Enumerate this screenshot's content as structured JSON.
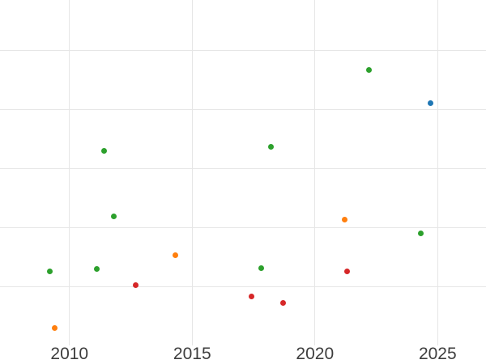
{
  "chart_data": {
    "type": "scatter",
    "title": "",
    "xlabel": "",
    "ylabel": "",
    "xlim": [
      2007.17,
      2026.97
    ],
    "ylim": [
      0,
      58.5
    ],
    "x_ticks": [
      {
        "value": 2010,
        "label": "2010"
      },
      {
        "value": 2015,
        "label": "2015"
      },
      {
        "value": 2020,
        "label": "2020"
      },
      {
        "value": 2025,
        "label": "2025"
      }
    ],
    "y_gridlines": [
      10,
      20,
      30,
      40,
      50
    ],
    "grid": true,
    "legend_position": "none",
    "marker_diameter_px": 7,
    "colors": {
      "gridline": "#e6e6e6",
      "tick_label": "#3d3d3d",
      "background": "#ffffff"
    },
    "series": [
      {
        "name": "green",
        "color": "#2ca02c",
        "points": [
          [
            2009.2,
            12.5
          ],
          [
            2011.1,
            12.9
          ],
          [
            2011.4,
            32.9
          ],
          [
            2011.8,
            21.8
          ],
          [
            2017.8,
            13.1
          ],
          [
            2018.2,
            33.7
          ],
          [
            2022.2,
            46.7
          ],
          [
            2024.3,
            19.0
          ]
        ]
      },
      {
        "name": "orange",
        "color": "#ff7f0e",
        "points": [
          [
            2009.4,
            2.9
          ],
          [
            2014.3,
            15.3
          ],
          [
            2021.2,
            21.3
          ]
        ]
      },
      {
        "name": "red",
        "color": "#d62728",
        "points": [
          [
            2012.7,
            10.2
          ],
          [
            2017.4,
            8.3
          ],
          [
            2018.7,
            7.2
          ],
          [
            2021.3,
            12.5
          ]
        ]
      },
      {
        "name": "blue",
        "color": "#1f77b4",
        "points": [
          [
            2024.7,
            41.0
          ]
        ]
      }
    ]
  }
}
